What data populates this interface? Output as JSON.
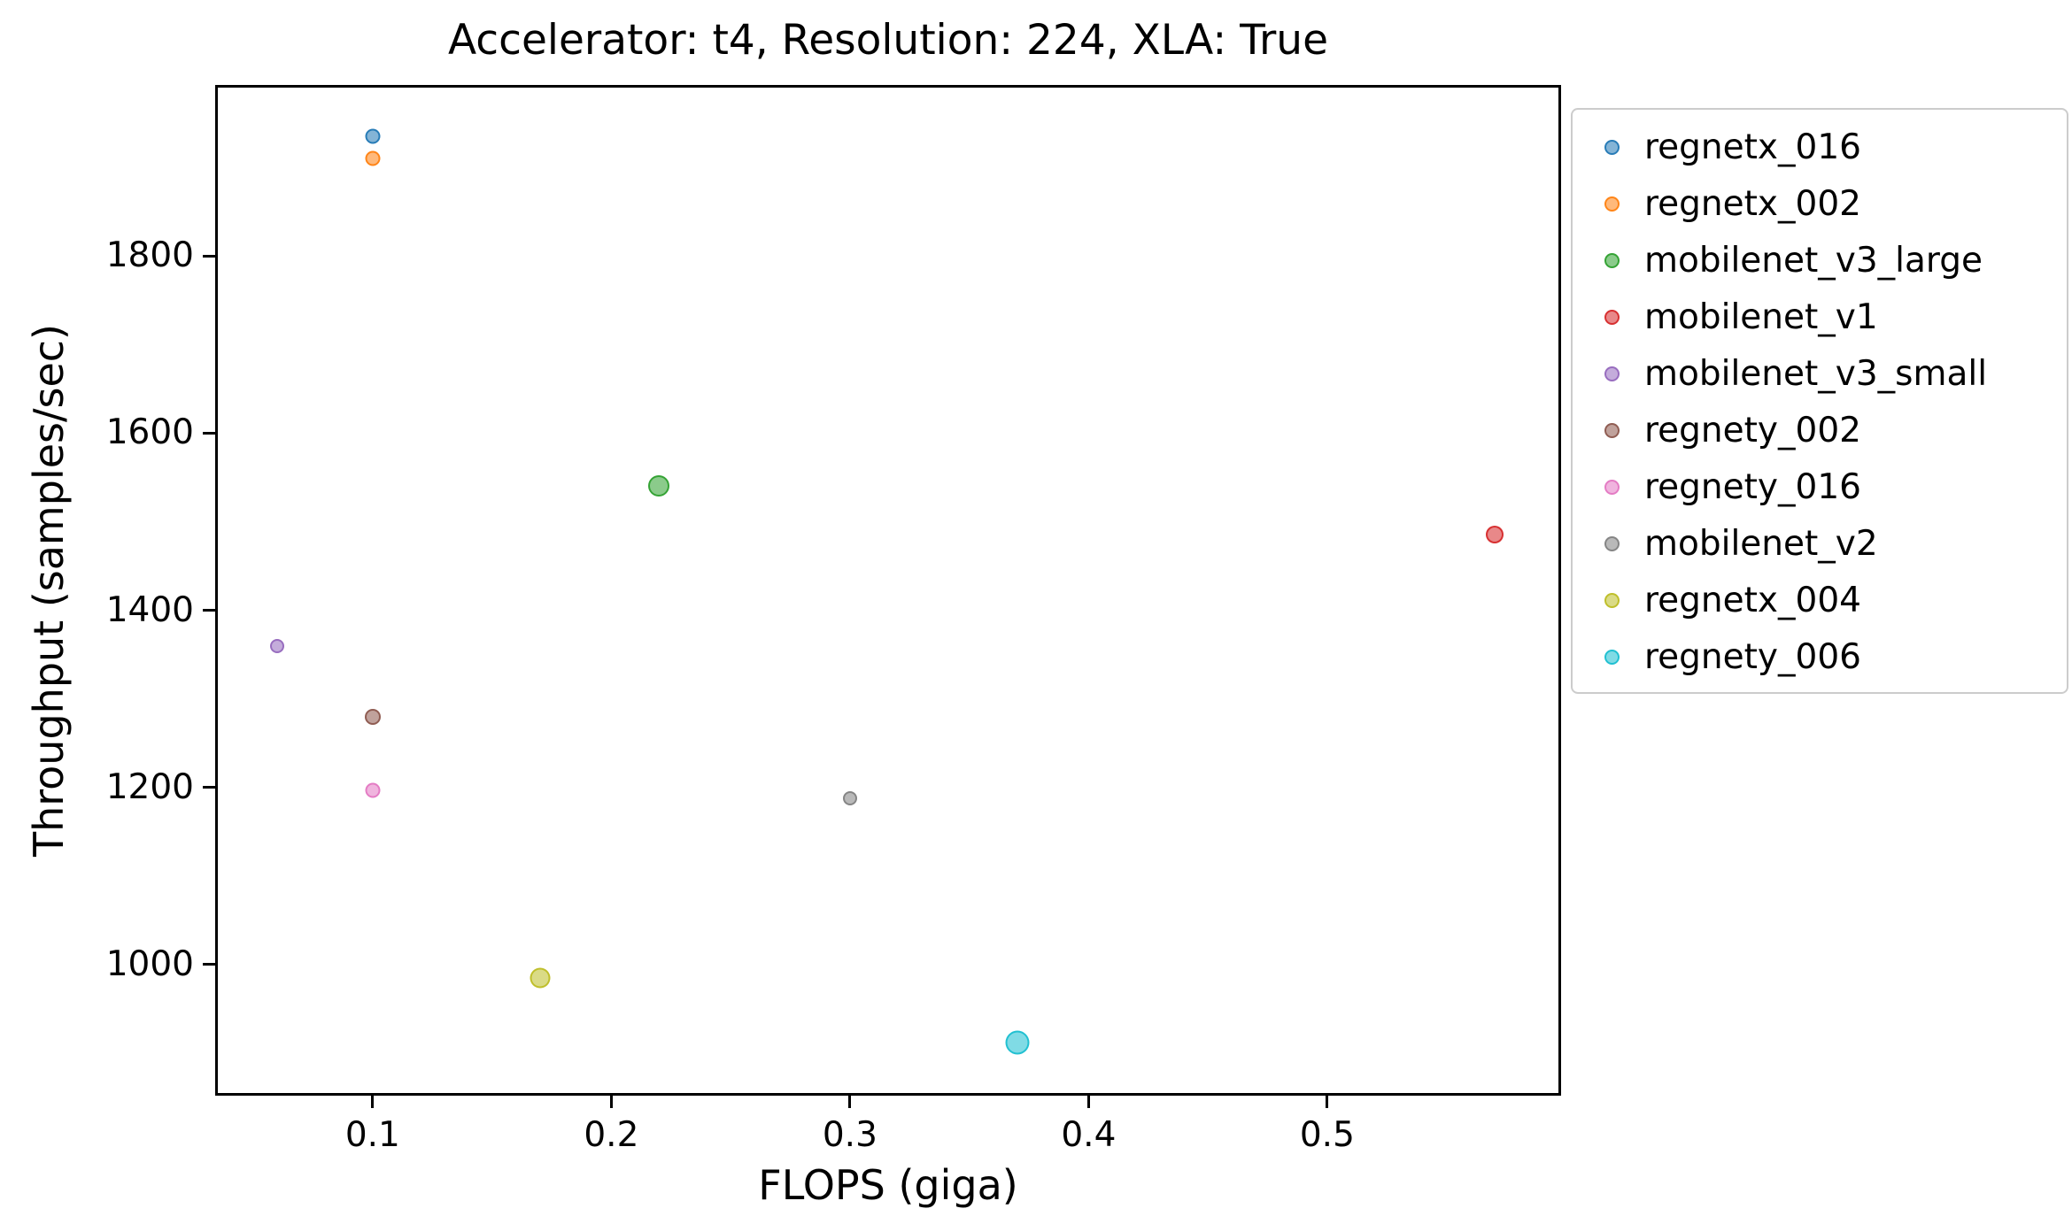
{
  "chart_data": {
    "type": "scatter",
    "title": "Accelerator: t4, Resolution: 224, XLA: True",
    "xlabel": "FLOPS (giga)",
    "ylabel": "Throughput (samples/sec)",
    "xlim": [
      0.034,
      0.598
    ],
    "ylim": [
      852,
      1993
    ],
    "grid": false,
    "legend_position": "outside-right",
    "x_ticks": [
      {
        "value": 0.1,
        "label": "0.1"
      },
      {
        "value": 0.2,
        "label": "0.2"
      },
      {
        "value": 0.3,
        "label": "0.3"
      },
      {
        "value": 0.4,
        "label": "0.4"
      },
      {
        "value": 0.5,
        "label": "0.5"
      }
    ],
    "y_ticks": [
      {
        "value": 1000,
        "label": "1000"
      },
      {
        "value": 1200,
        "label": "1200"
      },
      {
        "value": 1400,
        "label": "1400"
      },
      {
        "value": 1600,
        "label": "1600"
      },
      {
        "value": 1800,
        "label": "1800"
      }
    ],
    "series": [
      {
        "name": "regnetx_016",
        "color": "#1f77b4",
        "x": 0.1,
        "y": 1935,
        "size": 17
      },
      {
        "name": "regnetx_002",
        "color": "#ff7f0e",
        "x": 0.1,
        "y": 1910,
        "size": 17
      },
      {
        "name": "mobilenet_v3_large",
        "color": "#2ca02c",
        "x": 0.22,
        "y": 1540,
        "size": 24
      },
      {
        "name": "mobilenet_v1",
        "color": "#d62728",
        "x": 0.57,
        "y": 1485,
        "size": 20
      },
      {
        "name": "mobilenet_v3_small",
        "color": "#9467bd",
        "x": 0.06,
        "y": 1360,
        "size": 16
      },
      {
        "name": "regnety_002",
        "color": "#8c564b",
        "x": 0.1,
        "y": 1280,
        "size": 18
      },
      {
        "name": "regnety_016",
        "color": "#e377c2",
        "x": 0.1,
        "y": 1197,
        "size": 17
      },
      {
        "name": "mobilenet_v2",
        "color": "#7f7f7f",
        "x": 0.3,
        "y": 1188,
        "size": 16
      },
      {
        "name": "regnetx_004",
        "color": "#bcbd22",
        "x": 0.17,
        "y": 985,
        "size": 23
      },
      {
        "name": "regnety_006",
        "color": "#17becf",
        "x": 0.37,
        "y": 912,
        "size": 27
      }
    ]
  }
}
